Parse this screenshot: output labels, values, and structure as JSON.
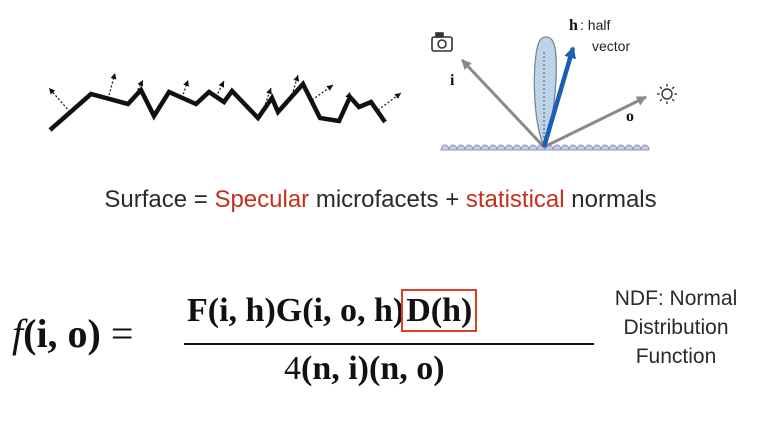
{
  "labels": {
    "h_bold": "h",
    "h_note_1": ": half",
    "h_note_2": "vector",
    "i": "i",
    "o": "o"
  },
  "caption": {
    "part1": "Surface = ",
    "specular": "Specular",
    "part2": " microfacets + ",
    "statistical": "statistical",
    "part3": " normals"
  },
  "formula": {
    "lhs_f": "f",
    "lhs_args": "(i, o)",
    "equals": " = ",
    "num_fg": "F(i, h)G(i, o, h)",
    "num_d": "D(h)",
    "den_4": "4",
    "den_rest": "(n, i)(n, o)"
  },
  "ndf": {
    "line1": "NDF: Normal",
    "line2": "Distribution",
    "line3": "Function"
  },
  "colors": {
    "accent_red": "#c5301b",
    "box_red": "#d9412b",
    "half_vector_blue": "#1a5fb4",
    "lobe_fill": "#bcd3ea",
    "ray_gray": "#8a8a8a",
    "surface_bumps": "#a9aed4"
  },
  "icons": [
    "camera-icon",
    "sun-icon"
  ]
}
